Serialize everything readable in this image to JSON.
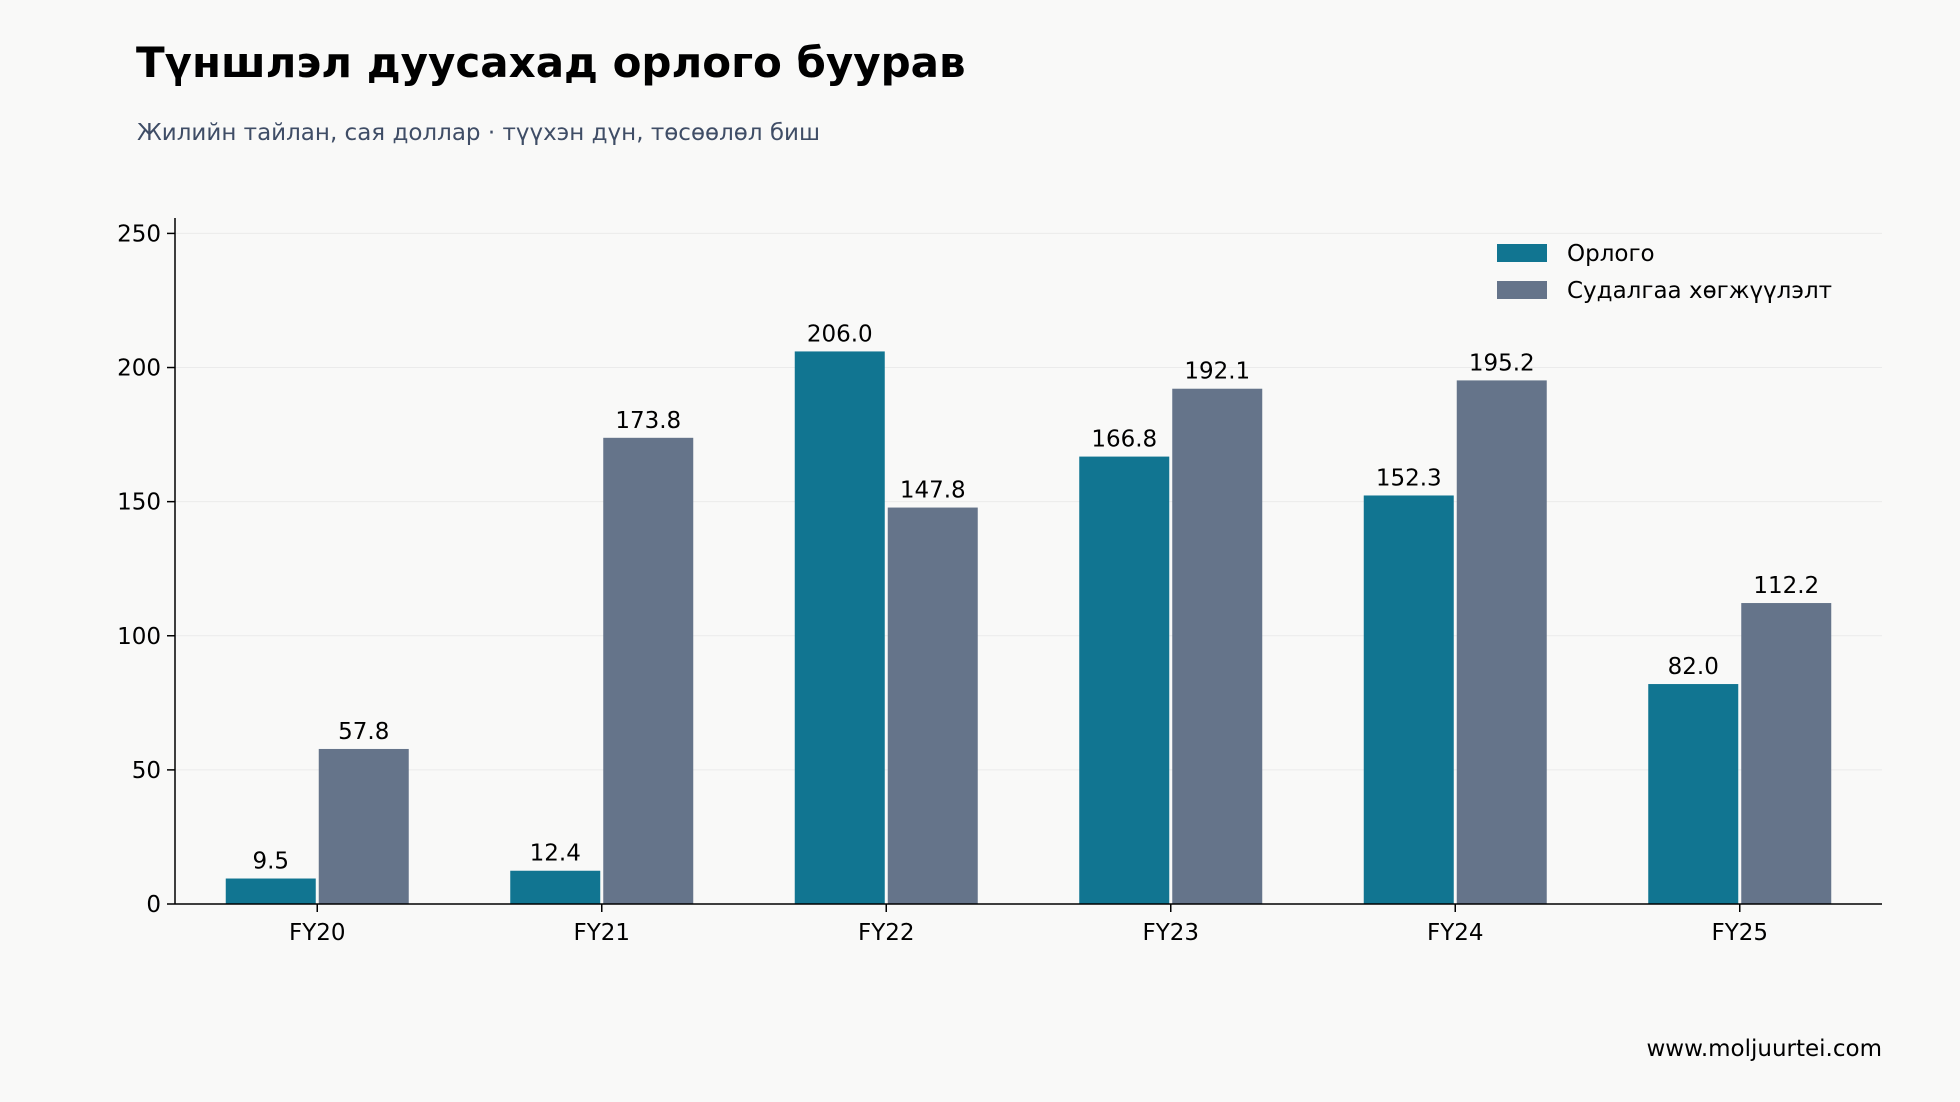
{
  "title": "Түншлэл дуусахад орлого буурав",
  "subtitle": "Жилийн тайлан, сая доллар · түүхэн дүн, төсөөлөл биш",
  "source": "www.moljuurtei.com",
  "colors": {
    "revenue": "#117591",
    "rnd": "#65748a",
    "background": "#f9f9f8",
    "axis": "#000000",
    "grid": "#ebebeb"
  },
  "chart_data": {
    "type": "bar",
    "categories": [
      "FY20",
      "FY21",
      "FY22",
      "FY23",
      "FY24",
      "FY25"
    ],
    "series": [
      {
        "name": "Орлого",
        "values": [
          9.5,
          12.4,
          206.0,
          166.8,
          152.3,
          82.0
        ]
      },
      {
        "name": "Судалгаа хөгжүүлэлт",
        "values": [
          57.8,
          173.8,
          147.8,
          192.1,
          195.2,
          112.2
        ]
      }
    ],
    "yticks": [
      0,
      50,
      100,
      150,
      200,
      250
    ],
    "ylim": [
      0,
      255
    ],
    "grid": true,
    "legend": "top-right",
    "data_labels": true,
    "label_decimals": 1
  }
}
